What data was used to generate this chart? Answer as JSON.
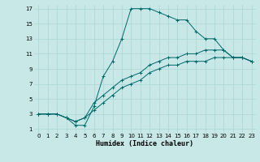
{
  "xlabel": "Humidex (Indice chaleur)",
  "background_color": "#c8e8e8",
  "grid_color": "#b0d8d8",
  "line_color": "#006868",
  "xlim": [
    -0.5,
    23.5
  ],
  "ylim": [
    0.5,
    17.5
  ],
  "xticks": [
    0,
    1,
    2,
    3,
    4,
    5,
    6,
    7,
    8,
    9,
    10,
    11,
    12,
    13,
    14,
    15,
    16,
    17,
    18,
    19,
    20,
    21,
    22,
    23
  ],
  "yticks": [
    1,
    3,
    5,
    7,
    9,
    11,
    13,
    15,
    17
  ],
  "series": [
    {
      "x": [
        0,
        1,
        2,
        3,
        4,
        5,
        6,
        7,
        8,
        9,
        10,
        11,
        12,
        13,
        14,
        15,
        16,
        17,
        18,
        19,
        20,
        21,
        22,
        23
      ],
      "y": [
        3,
        3,
        3,
        2.5,
        1.5,
        1.5,
        4,
        8,
        10,
        13,
        17,
        17,
        17,
        16.5,
        16,
        15.5,
        15.5,
        14,
        13,
        13,
        11.5,
        10.5,
        10.5,
        10
      ]
    },
    {
      "x": [
        0,
        1,
        2,
        3,
        4,
        5,
        6,
        7,
        8,
        9,
        10,
        11,
        12,
        13,
        14,
        15,
        16,
        17,
        18,
        19,
        20,
        21,
        22,
        23
      ],
      "y": [
        3,
        3,
        3,
        2.5,
        2,
        2.5,
        4.5,
        5.5,
        6.5,
        7.5,
        8,
        8.5,
        9.5,
        10,
        10.5,
        10.5,
        11,
        11,
        11.5,
        11.5,
        11.5,
        10.5,
        10.5,
        10
      ]
    },
    {
      "x": [
        0,
        1,
        2,
        3,
        4,
        5,
        6,
        7,
        8,
        9,
        10,
        11,
        12,
        13,
        14,
        15,
        16,
        17,
        18,
        19,
        20,
        21,
        22,
        23
      ],
      "y": [
        3,
        3,
        3,
        2.5,
        2,
        2.5,
        3.5,
        4.5,
        5.5,
        6.5,
        7,
        7.5,
        8.5,
        9,
        9.5,
        9.5,
        10,
        10,
        10,
        10.5,
        10.5,
        10.5,
        10.5,
        10
      ]
    }
  ]
}
